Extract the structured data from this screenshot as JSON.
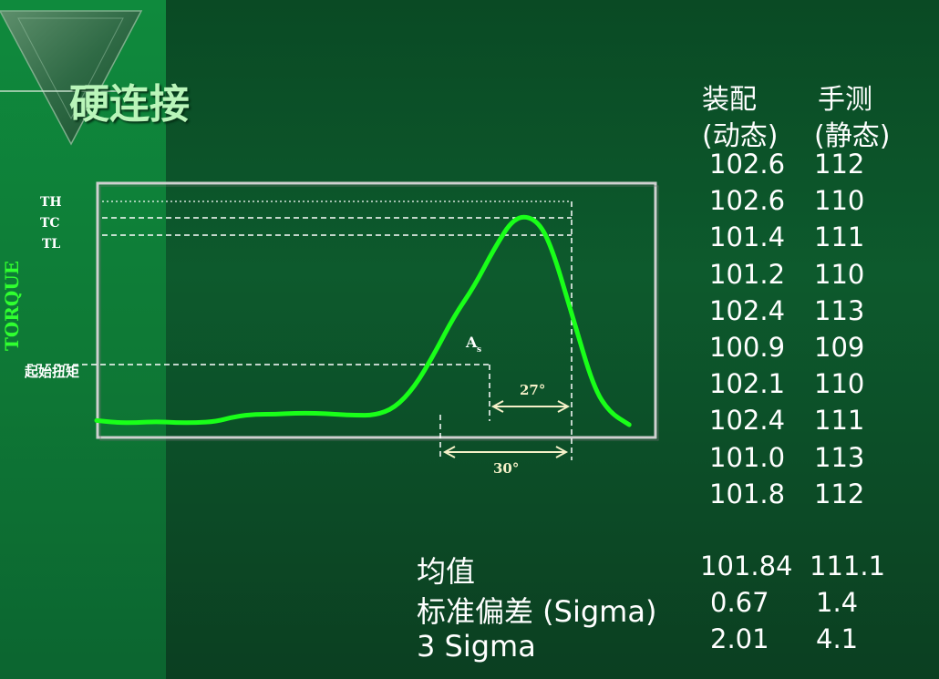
{
  "slide": {
    "title": "硬连接"
  },
  "chart_data": {
    "type": "line",
    "axis_label_vertical": "TORQUE",
    "torque_levels": [
      "TH",
      "TC",
      "TL"
    ],
    "threshold_label": "起始扭矩",
    "point_label": "A",
    "point_label_sub": "s",
    "angle_inner_label": "27°",
    "angle_outer_label": "30°",
    "line_color": "#19ff19",
    "frame_color": "#cfcfcf",
    "series": [
      {
        "x": [
          0,
          10,
          20,
          30,
          40,
          50,
          60,
          70,
          80,
          90,
          100,
          110,
          120,
          130,
          140,
          150,
          160,
          170,
          180,
          190,
          200,
          210,
          220,
          228,
          240,
          250,
          258,
          268
        ],
        "y": [
          2,
          1,
          1,
          1.5,
          1,
          1,
          1.5,
          4,
          5,
          5,
          5.5,
          5.5,
          5,
          4.5,
          4.5,
          8,
          18,
          34,
          52,
          66,
          84,
          99,
          99,
          88,
          50,
          18,
          6,
          0
        ]
      }
    ]
  },
  "table": {
    "headers": [
      {
        "line1": "装配",
        "line2": "(动态)"
      },
      {
        "line1": "手测",
        "line2": "(静态)"
      }
    ],
    "rows": [
      {
        "dyn": "102.6",
        "stat": "112"
      },
      {
        "dyn": "102.6",
        "stat": "110"
      },
      {
        "dyn": "101.4",
        "stat": "111"
      },
      {
        "dyn": "101.2",
        "stat": "110"
      },
      {
        "dyn": "102.4",
        "stat": "113"
      },
      {
        "dyn": "100.9",
        "stat": "109"
      },
      {
        "dyn": "102.1",
        "stat": "110"
      },
      {
        "dyn": "102.4",
        "stat": "111"
      },
      {
        "dyn": "101.0",
        "stat": "113"
      },
      {
        "dyn": "101.8",
        "stat": "112"
      }
    ]
  },
  "stats": [
    {
      "label": "均值",
      "dyn": "101.84",
      "stat": "111.1"
    },
    {
      "label": "标准偏差 (Sigma)",
      "dyn": "0.67",
      "stat": "1.4"
    },
    {
      "label": "3 Sigma",
      "dyn": "2.01",
      "stat": "4.1"
    }
  ]
}
